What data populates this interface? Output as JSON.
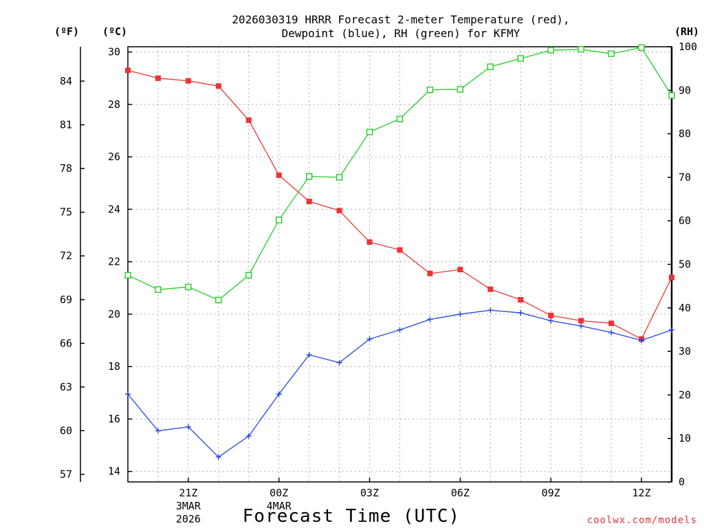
{
  "chart_data": {
    "type": "line",
    "title_line1": "2026030319 HRRR Forecast 2-meter Temperature (red),",
    "title_line2": "Dewpoint (blue), RH (green) for KFMY",
    "xlabel": "Forecast Time (UTC)",
    "credit": "coolwx.com/models",
    "unit_left_f": "(ºF)",
    "unit_left_c": "(ºC)",
    "unit_right": "(RH)",
    "x": [
      19,
      20,
      21,
      22,
      23,
      24,
      25,
      26,
      27,
      28,
      29,
      30,
      31,
      32,
      33,
      34,
      35,
      36,
      37
    ],
    "xlim": [
      19,
      37
    ],
    "x_ticks": [
      {
        "x": 21,
        "label": "21Z",
        "sub1": "3MAR",
        "sub2": "2026"
      },
      {
        "x": 24,
        "label": "00Z",
        "sub1": "4MAR",
        "sub2": ""
      },
      {
        "x": 27,
        "label": "03Z",
        "sub1": "",
        "sub2": ""
      },
      {
        "x": 30,
        "label": "06Z",
        "sub1": "",
        "sub2": ""
      },
      {
        "x": 33,
        "label": "09Z",
        "sub1": "",
        "sub2": ""
      },
      {
        "x": 36,
        "label": "12Z",
        "sub1": "",
        "sub2": ""
      }
    ],
    "ylim_c": [
      13.6,
      30.2
    ],
    "y_ticks_c": [
      "14",
      "16",
      "18",
      "20",
      "22",
      "24",
      "26",
      "28",
      "30"
    ],
    "y_ticks_f": [
      "57",
      "60",
      "63",
      "66",
      "69",
      "72",
      "75",
      "78",
      "81",
      "84"
    ],
    "ylim_rh": [
      0,
      100
    ],
    "y_ticks_rh": [
      "0",
      "10",
      "20",
      "30",
      "40",
      "50",
      "60",
      "70",
      "80",
      "90",
      "100"
    ],
    "series": [
      {
        "name": "Temperature",
        "unit": "C",
        "color": "#ee3333",
        "marker": "filled-square",
        "values": [
          29.3,
          29.0,
          28.9,
          28.7,
          27.4,
          25.3,
          24.3,
          23.95,
          22.75,
          22.45,
          21.55,
          21.7,
          20.95,
          20.55,
          19.95,
          19.75,
          19.65,
          19.05,
          21.4
        ]
      },
      {
        "name": "Dewpoint",
        "unit": "C",
        "color": "#2244dd",
        "marker": "plus",
        "values": [
          16.95,
          15.55,
          15.7,
          14.55,
          15.35,
          16.95,
          18.45,
          18.15,
          19.05,
          19.4,
          19.8,
          20.0,
          20.15,
          20.05,
          19.75,
          19.55,
          19.3,
          19.0,
          19.4
        ]
      },
      {
        "name": "RH",
        "unit": "%",
        "color": "#22cc22",
        "marker": "open-square",
        "values": [
          47.5,
          44.2,
          44.8,
          41.8,
          47.5,
          60.2,
          70.2,
          70.0,
          80.4,
          83.4,
          90.1,
          90.2,
          95.4,
          97.3,
          99.2,
          99.4,
          98.4,
          99.8,
          88.8
        ]
      }
    ]
  }
}
